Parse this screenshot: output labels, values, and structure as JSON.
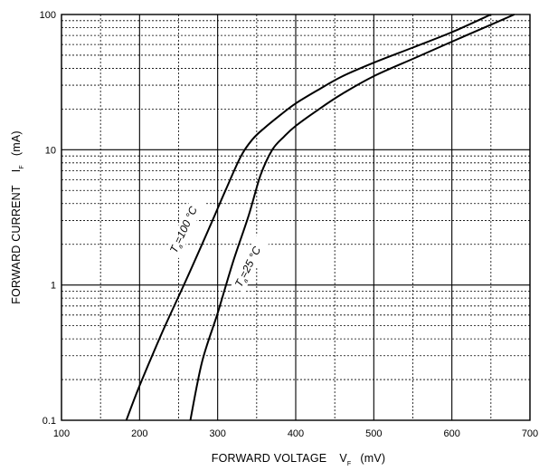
{
  "chart_data": {
    "type": "line",
    "x_scale": "linear",
    "y_scale": "log",
    "xlim": [
      100,
      700
    ],
    "ylim": [
      0.1,
      100
    ],
    "x_ticks": [
      100,
      200,
      300,
      400,
      500,
      600,
      700
    ],
    "y_ticks": [
      0.1,
      1,
      10,
      100
    ],
    "x_tick_labels": [
      "100",
      "200",
      "300",
      "400",
      "500",
      "600",
      "700"
    ],
    "y_tick_labels": [
      "0.1",
      "1",
      "10",
      "100"
    ],
    "xlabel": {
      "prefix": "FORWARD VOLTAGE",
      "symbol": "V",
      "subscript": "F",
      "unit": "(mV)"
    },
    "ylabel": {
      "prefix": "FORWARD CURRENT",
      "symbol": "I",
      "subscript": "F",
      "unit": "(mA)"
    },
    "grid": {
      "major": true,
      "minor": true
    },
    "series": [
      {
        "label": {
          "symbol": "T",
          "subscript": "a",
          "text": "=100 °C"
        },
        "color": "#000000",
        "x": [
          183,
          200,
          230,
          260,
          290,
          310,
          330,
          345,
          360,
          380,
          400,
          430,
          460,
          500,
          550,
          600,
          650
        ],
        "y": [
          0.1,
          0.18,
          0.46,
          1.1,
          2.7,
          5.0,
          9.0,
          12.0,
          14.5,
          18.0,
          22.0,
          28.0,
          35.0,
          44.0,
          57.0,
          74.0,
          100.0
        ]
      },
      {
        "label": {
          "symbol": "T",
          "subscript": "a",
          "text": "=25 °C"
        },
        "color": "#000000",
        "x": [
          265,
          280,
          300,
          320,
          340,
          355,
          370,
          385,
          400,
          430,
          460,
          500,
          550,
          600,
          650,
          680
        ],
        "y": [
          0.1,
          0.27,
          0.62,
          1.5,
          3.3,
          6.5,
          10.0,
          12.5,
          15.0,
          20.0,
          26.0,
          35.0,
          47.0,
          63.0,
          84.0,
          100.0
        ]
      }
    ]
  }
}
